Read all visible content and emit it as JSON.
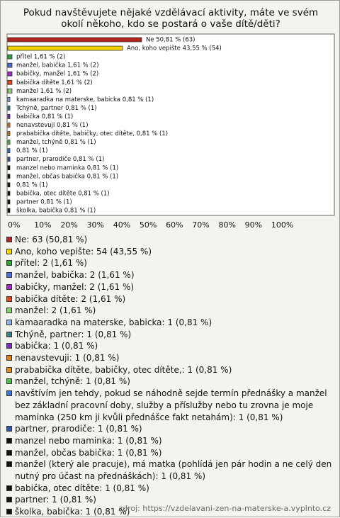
{
  "chart_data": {
    "type": "bar",
    "orientation": "horizontal",
    "title": "Pokud navštěvujete nějaké vzdělávací aktivity, máte ve svém okolí někoho, kdo se postará o vaše dítě/děti?",
    "values": [
      50.81,
      43.55,
      1.61,
      1.61,
      1.61,
      1.61,
      1.61,
      0.81,
      0.81,
      0.81,
      0.81,
      0.81,
      0.81,
      0.81,
      0.81,
      0.81,
      0.81,
      0.81,
      0.81,
      0.81,
      0.81
    ],
    "value_labels": [
      "Ne 50,81 % (63)",
      "Ano, koho vepište 43,55 % (54)",
      "přítel 1,61 % (2)",
      "manžel, babička 1,61 % (2)",
      "babičky, manžel 1,61 % (2)",
      "babička dítěte 1,61 % (2)",
      "manžel 1,61 % (2)",
      "kamaaradka na materske, babicka 0,81 % (1)",
      "Tchýně, partner 0,81 % (1)",
      "babička 0,81 % (1)",
      "nenavstevuji 0,81 % (1)",
      "prababička dítěte, babičky, otec dítěte, 0,81 % (1)",
      "manžel, tchýně 0,81 % (1)",
      "0,81 % (1)",
      "partner, prarodiče 0,81 % (1)",
      "manzel nebo maminka 0,81 % (1)",
      "manžel, občas babička 0,81 % (1)",
      "0,81 % (1)",
      "babička, otec dítěte 0,81 % (1)",
      "partner 0,81 % (1)",
      "školka, babička 0,81 % (1)"
    ],
    "legend_labels": [
      "Ne: 63 (50,81 %)",
      "Ano, koho vepište: 54 (43,55 %)",
      "přítel: 2 (1,61 %)",
      "manžel, babička: 2 (1,61 %)",
      "babičky, manžel: 2 (1,61 %)",
      "babička dítěte: 2 (1,61 %)",
      "manžel: 2 (1,61 %)",
      "kamaaradka na materske, babicka: 1 (0,81 %)",
      "Tchýně, partner: 1 (0,81 %)",
      "babička: 1 (0,81 %)",
      "nenavstevuji: 1 (0,81 %)",
      "prababička dítěte, babičky, otec dítěte,: 1 (0,81 %)",
      "manžel, tchýně: 1 (0,81 %)",
      "navštívím jen tehdy, pokud se náhodně sejde termín přednášky a manžel bez základní pracovní doby, služby a příslužby nebo tu zrovna je moje maminka (250 km ji kvůli přednášce fakt netahám): 1 (0,81 %)",
      "partner, prarodiče: 1 (0,81 %)",
      "manzel nebo maminka: 1 (0,81 %)",
      "manžel, občas babička: 1 (0,81 %)",
      "manžel (který ale pracuje), má matka (pohlídá jen pár hodin a ne celý den nutný pro účast na přednáškách): 1 (0,81 %)",
      "babička, otec dítěte: 1 (0,81 %)",
      "partner: 1 (0,81 %)",
      "školka, babička: 1 (0,81 %)"
    ],
    "colors": [
      "#b3261e",
      "#f5d400",
      "#2aa532",
      "#4a6fd8",
      "#a12bc4",
      "#e0481a",
      "#86d36e",
      "#8fb3e8",
      "#2f7f8f",
      "#7b2fbf",
      "#e07b1a",
      "#e08a1e",
      "#4fc04a",
      "#3d78d8",
      "#3355aa",
      "#111111",
      "#111111",
      "#111111",
      "#111111",
      "#111111",
      "#111111"
    ],
    "xlim": [
      0,
      123.7
    ],
    "xticks": [
      {
        "value": 0,
        "label": "0%"
      },
      {
        "value": 10,
        "label": "10%"
      },
      {
        "value": 20,
        "label": "20%"
      },
      {
        "value": 30,
        "label": "30%"
      },
      {
        "value": 40,
        "label": "40%"
      },
      {
        "value": 50,
        "label": "50%"
      },
      {
        "value": 60,
        "label": "60%"
      },
      {
        "value": 70,
        "label": "70%"
      },
      {
        "value": 80,
        "label": "80%"
      },
      {
        "value": 90,
        "label": "90%"
      },
      {
        "value": 100,
        "label": "100%"
      }
    ],
    "source": "zdroj: https://vzdelavani-zen-na-materske-a.vyplnto.cz"
  }
}
